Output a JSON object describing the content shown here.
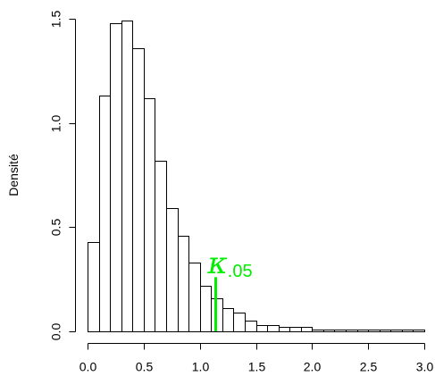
{
  "chart_data": {
    "type": "bar",
    "ylabel": "Densité",
    "xlabel": "",
    "title": "",
    "xlim": [
      0,
      3
    ],
    "ylim": [
      0,
      1.5
    ],
    "x_ticks": [
      "0.0",
      "0.5",
      "1.0",
      "1.5",
      "2.0",
      "2.5",
      "3.0"
    ],
    "y_ticks": [
      "0.0",
      "0.5",
      "1.0",
      "1.5"
    ],
    "bin_width": 0.1,
    "bin_starts": [
      0.0,
      0.1,
      0.2,
      0.3,
      0.4,
      0.5,
      0.6,
      0.7,
      0.8,
      0.9,
      1.0,
      1.1,
      1.2,
      1.3,
      1.4,
      1.5,
      1.6,
      1.7,
      1.8,
      1.9,
      2.0,
      2.1,
      2.2,
      2.3,
      2.4,
      2.5,
      2.6,
      2.7,
      2.8,
      2.9
    ],
    "values": [
      0.43,
      1.13,
      1.48,
      1.49,
      1.36,
      1.12,
      0.82,
      0.59,
      0.46,
      0.33,
      0.22,
      0.16,
      0.11,
      0.09,
      0.05,
      0.03,
      0.03,
      0.02,
      0.02,
      0.02,
      0.01,
      0.01,
      0.01,
      0.01,
      0.01,
      0.01,
      0.01,
      0.01,
      0.01,
      0.01
    ],
    "annotation": {
      "symbol": "κ",
      "subscript": ".05",
      "x": 1.14,
      "line_top": 0.26,
      "color": "#00ee00"
    }
  }
}
